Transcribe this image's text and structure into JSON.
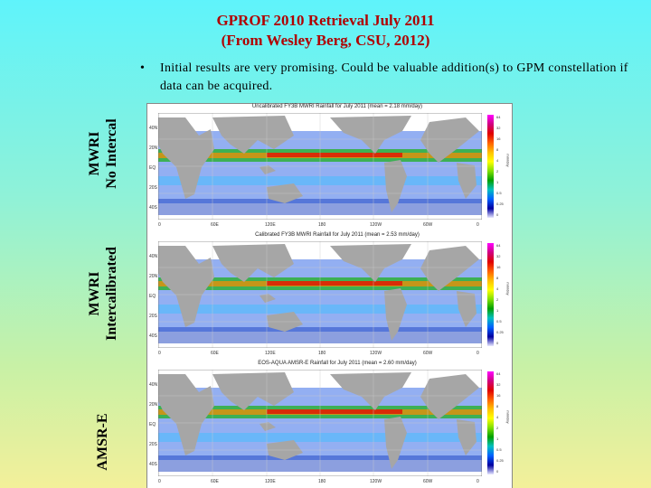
{
  "title": {
    "line1": "GPROF 2010 Retrieval  July 2011",
    "line2": "(From Wesley Berg, CSU, 2012)"
  },
  "bullet": {
    "mark": "•",
    "text": "Initial results are very promising. Could be valuable addition(s) to GPM constellation if data can be acquired."
  },
  "side_labels": [
    {
      "line1": "MWRI",
      "line2": "No Intercal"
    },
    {
      "line1": "MWRI",
      "line2": "Intercalibrated"
    },
    {
      "line1": "AMSR-E",
      "line2": ""
    }
  ],
  "figure": {
    "panels": [
      {
        "title": "Uncalibrated FY3B MWRI Rainfall for July 2011 (mean = 2.18 mm/day)"
      },
      {
        "title": "Calibrated FY3B MWRI Rainfall for July 2011 (mean = 2.53 mm/day)"
      },
      {
        "title": "EOS-AQUA AMSR-E Rainfall for July 2011 (mean = 2.60 mm/day)"
      }
    ],
    "lon_ticks": [
      "0",
      "60E",
      "120E",
      "180",
      "120W",
      "60W",
      "0"
    ],
    "lat_ticks": [
      "40N",
      "20N",
      "EQ",
      "20S",
      "40S"
    ],
    "colorbar_ticks": [
      "64",
      "32",
      "16",
      "8",
      "4",
      "2",
      "1",
      "0.5",
      "0.25",
      "0"
    ],
    "colorbar_unit": "mm/day"
  },
  "colors": {
    "title": "#b00000",
    "ocean_rain_light": "#2a60e0",
    "land": "#a6a6a6"
  }
}
